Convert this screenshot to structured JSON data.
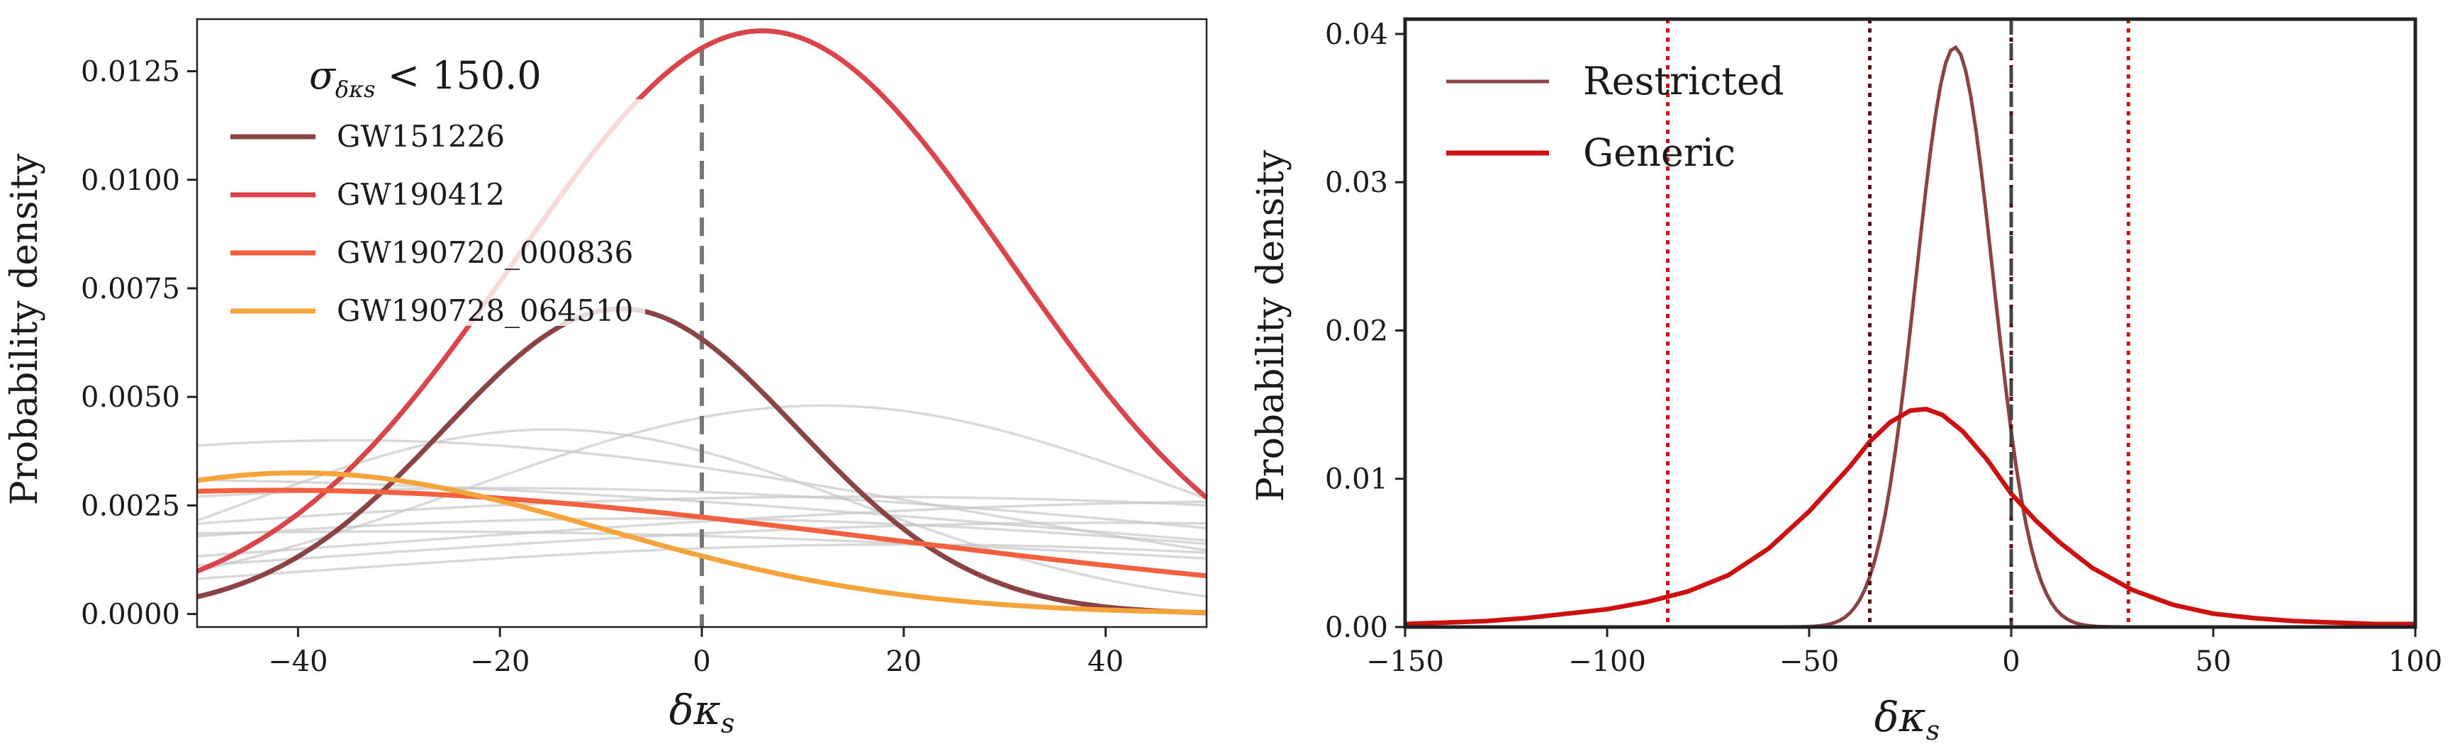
{
  "chart_data": [
    {
      "type": "line",
      "xlabel": "δκ",
      "xlabel_sub": "s",
      "ylabel": "Probability density",
      "xlim": [
        -50,
        50
      ],
      "ylim": [
        -0.0003,
        0.0137
      ],
      "xticks": [
        -40,
        -20,
        0,
        20,
        40
      ],
      "xtick_labels": [
        "−40",
        "−20",
        "0",
        "20",
        "40"
      ],
      "yticks": [
        0.0,
        0.0025,
        0.005,
        0.0075,
        0.01,
        0.0125
      ],
      "ytick_labels": [
        "0.0000",
        "0.0025",
        "0.0050",
        "0.0075",
        "0.0100",
        "0.0125"
      ],
      "vline": {
        "x": 0,
        "style": "dashed",
        "color": "#777777"
      },
      "legend": {
        "title_main": "σ",
        "title_sub": "δκs",
        "title_rest": " < 150.0",
        "location": "upper-left"
      },
      "series": [
        {
          "name": "GW151226",
          "color": "#8b4446",
          "mean": -8,
          "sd": 17.5,
          "peak": 0.00703,
          "in_legend": true
        },
        {
          "name": "GW190412",
          "color": "#d9454a",
          "mean": 6,
          "sd": 24.5,
          "peak": 0.01343,
          "in_legend": true
        },
        {
          "name": "GW190720_000836",
          "color": "#f2613f",
          "mean": -42,
          "sd": 60,
          "peak": 0.00285,
          "in_legend": true
        },
        {
          "name": "GW190728_064510",
          "color": "#f5a43c",
          "mean": -40,
          "sd": 30,
          "peak": 0.00325,
          "in_legend": true
        }
      ],
      "background_series": [
        {
          "mean": -35,
          "sd": 60,
          "peak": 0.004
        },
        {
          "mean": -15,
          "sd": 30,
          "peak": 0.00425
        },
        {
          "mean": 12,
          "sd": 35,
          "peak": 0.0048
        },
        {
          "mean": -20,
          "sd": 80,
          "peak": 0.0029
        },
        {
          "mean": 15,
          "sd": 90,
          "peak": 0.0027
        },
        {
          "mean": -60,
          "sd": 100,
          "peak": 0.0031
        },
        {
          "mean": 60,
          "sd": 95,
          "peak": 0.0026
        },
        {
          "mean": -5,
          "sd": 70,
          "peak": 0.0022
        },
        {
          "mean": 40,
          "sd": 80,
          "peak": 0.0021
        },
        {
          "mean": -30,
          "sd": 90,
          "peak": 0.0019
        },
        {
          "mean": 20,
          "sd": 60,
          "peak": 0.0016
        }
      ]
    },
    {
      "type": "line",
      "xlabel": "δκ",
      "xlabel_sub": "s",
      "ylabel": "Probability density",
      "xlim": [
        -150,
        100
      ],
      "ylim": [
        0,
        0.041
      ],
      "xticks": [
        -150,
        -100,
        -50,
        0,
        50,
        100
      ],
      "xtick_labels": [
        "−150",
        "−100",
        "−50",
        "0",
        "50",
        "100"
      ],
      "yticks": [
        0.0,
        0.01,
        0.02,
        0.03,
        0.04
      ],
      "ytick_labels": [
        "0.00",
        "0.01",
        "0.02",
        "0.03",
        "0.04"
      ],
      "legend_location": "upper-left",
      "series": [
        {
          "name": "Restricted",
          "color": "#8b4446",
          "peak_x": -14,
          "peak_y": 0.0391,
          "sd": 9.5
        },
        {
          "name": "Generic",
          "color": "#cc1111",
          "points": [
            [
              -150,
              0.0002
            ],
            [
              -140,
              0.0003
            ],
            [
              -130,
              0.0004
            ],
            [
              -120,
              0.0006
            ],
            [
              -110,
              0.0009
            ],
            [
              -100,
              0.0012
            ],
            [
              -90,
              0.0017
            ],
            [
              -80,
              0.0024
            ],
            [
              -70,
              0.0035
            ],
            [
              -60,
              0.0053
            ],
            [
              -50,
              0.0078
            ],
            [
              -40,
              0.0108
            ],
            [
              -35,
              0.0125
            ],
            [
              -30,
              0.0138
            ],
            [
              -25,
              0.0146
            ],
            [
              -21,
              0.0147
            ],
            [
              -17,
              0.0143
            ],
            [
              -12,
              0.0132
            ],
            [
              -6,
              0.0113
            ],
            [
              0,
              0.009
            ],
            [
              6,
              0.0072
            ],
            [
              12,
              0.0057
            ],
            [
              20,
              0.004
            ],
            [
              30,
              0.0025
            ],
            [
              40,
              0.0015
            ],
            [
              50,
              0.0009
            ],
            [
              60,
              0.0006
            ],
            [
              70,
              0.0004
            ],
            [
              80,
              0.0003
            ],
            [
              90,
              0.0002
            ],
            [
              100,
              0.0002
            ]
          ]
        }
      ],
      "vlines": [
        {
          "x": -85,
          "color": "#cc1111",
          "style": "dotted"
        },
        {
          "x": 29,
          "color": "#cc1111",
          "style": "dotted"
        },
        {
          "x": -35,
          "color": "#5a0f14",
          "style": "dotted"
        },
        {
          "x": 0,
          "color": "#5a0f14",
          "style": "dotted"
        },
        {
          "x": 0,
          "color": "#444444",
          "style": "dashed"
        }
      ]
    }
  ]
}
